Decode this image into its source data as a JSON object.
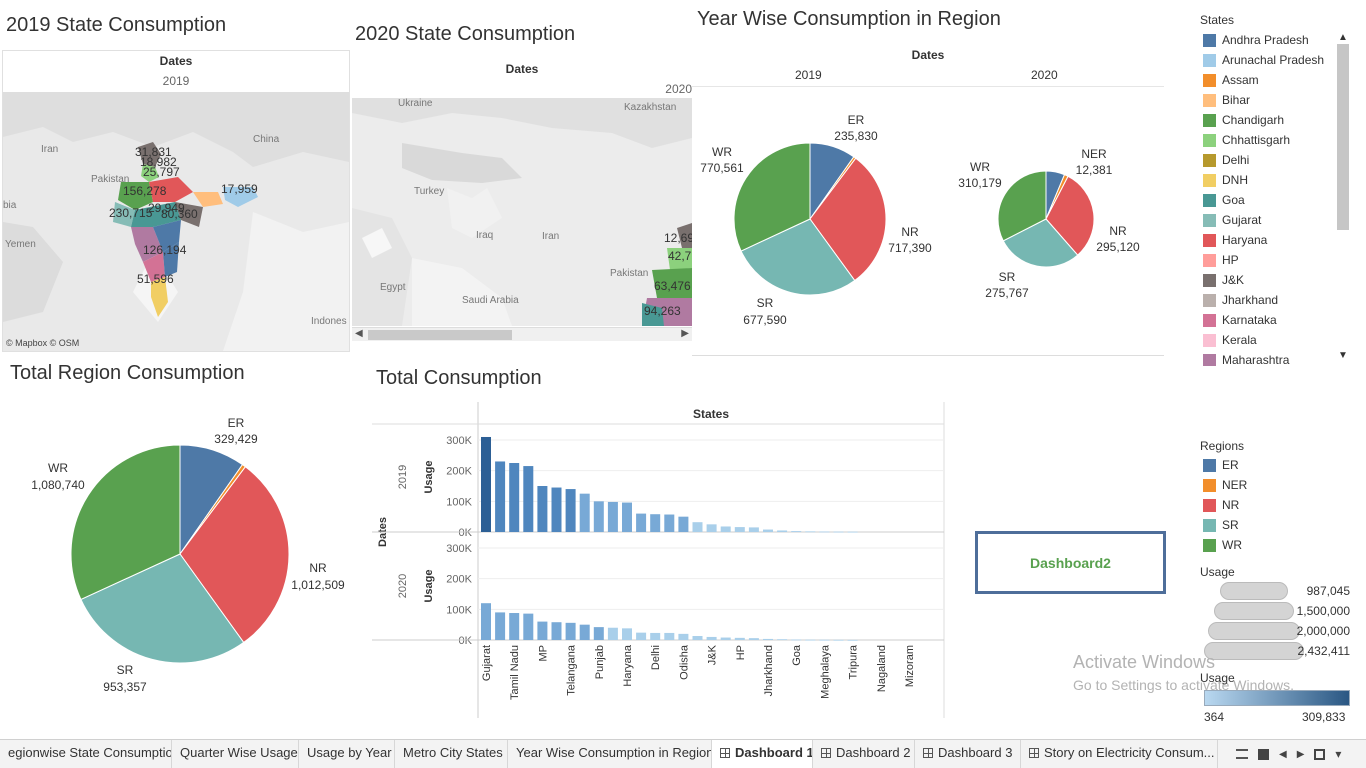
{
  "colors": {
    "ER": "#4e79a7",
    "NER": "#f28e2b",
    "NR": "#e15759",
    "SR": "#76b7b2",
    "WR": "#59a14f",
    "barDark": "#2c5f95",
    "barLight": "#a9cfea",
    "accentBox": "#4e6e9a",
    "dashboardText": "#59a14f"
  },
  "map2019": {
    "title": "2019 State Consumption",
    "header": "Dates",
    "year": "2019",
    "labels": [
      "31,831",
      "18,982",
      "25,797",
      "156,278",
      "17,959",
      "230,715",
      "29,949",
      "80,360",
      "126,194",
      "51,596"
    ],
    "places": [
      "Iran",
      "China",
      "Pakistan",
      "Yemen",
      "bia",
      "Indones"
    ],
    "credit": "© Mapbox © OSM"
  },
  "map2020": {
    "title": "2020 State Consumption",
    "header": "Dates",
    "year": "2020",
    "labels": [
      "12,69",
      "42,7",
      "63,476",
      "94,263"
    ],
    "places": [
      "Ukraine",
      "Kazakhstan",
      "Turkey",
      "Iraq",
      "Iran",
      "Egypt",
      "Saudi Arabia",
      "Pakistan"
    ]
  },
  "yearWise": {
    "title": "Year Wise Consumption in Region",
    "header": "Dates",
    "years": [
      "2019",
      "2020"
    ],
    "pie2019": {
      "slices": [
        {
          "region": "ER",
          "label": "ER",
          "value": "235,830",
          "v": 235830
        },
        {
          "region": "NER",
          "label": "NER",
          "value": "",
          "v": 12000
        },
        {
          "region": "NR",
          "label": "NR",
          "value": "717,390",
          "v": 717390
        },
        {
          "region": "SR",
          "label": "SR",
          "value": "677,590",
          "v": 677590
        },
        {
          "region": "WR",
          "label": "WR",
          "value": "770,561",
          "v": 770561
        }
      ]
    },
    "pie2020": {
      "slices": [
        {
          "region": "ER",
          "label": "",
          "value": "",
          "v": 60000
        },
        {
          "region": "NER",
          "label": "NER",
          "value": "12,381",
          "v": 12381
        },
        {
          "region": "NR",
          "label": "NR",
          "value": "295,120",
          "v": 295120
        },
        {
          "region": "SR",
          "label": "SR",
          "value": "275,767",
          "v": 275767
        },
        {
          "region": "WR",
          "label": "WR",
          "value": "310,179",
          "v": 310179
        }
      ]
    }
  },
  "statesLegend": {
    "title": "States",
    "items": [
      {
        "name": "Andhra Pradesh",
        "color": "#4e79a7"
      },
      {
        "name": "Arunachal Pradesh",
        "color": "#a0cbe8"
      },
      {
        "name": "Assam",
        "color": "#f28e2b"
      },
      {
        "name": "Bihar",
        "color": "#ffbe7d"
      },
      {
        "name": "Chandigarh",
        "color": "#59a14f"
      },
      {
        "name": "Chhattisgarh",
        "color": "#8cd17d"
      },
      {
        "name": "Delhi",
        "color": "#b6992d"
      },
      {
        "name": "DNH",
        "color": "#f1ce63"
      },
      {
        "name": "Goa",
        "color": "#499894"
      },
      {
        "name": "Gujarat",
        "color": "#86bcb6"
      },
      {
        "name": "Haryana",
        "color": "#e15759"
      },
      {
        "name": "HP",
        "color": "#ff9d9a"
      },
      {
        "name": "J&K",
        "color": "#79706e"
      },
      {
        "name": "Jharkhand",
        "color": "#bab0ac"
      },
      {
        "name": "Karnataka",
        "color": "#d37295"
      },
      {
        "name": "Kerala",
        "color": "#fabfd2"
      },
      {
        "name": "Maharashtra",
        "color": "#b07aa1"
      }
    ]
  },
  "totalRegion": {
    "title": "Total Region Consumption",
    "slices": [
      {
        "region": "ER",
        "label": "ER",
        "value": "329,429",
        "v": 329429
      },
      {
        "region": "NER",
        "label": "",
        "value": "",
        "v": 18000
      },
      {
        "region": "NR",
        "label": "NR",
        "value": "1,012,509",
        "v": 1012509
      },
      {
        "region": "SR",
        "label": "SR",
        "value": "953,357",
        "v": 953357
      },
      {
        "region": "WR",
        "label": "WR",
        "value": "1,080,740",
        "v": 1080740
      }
    ]
  },
  "totalConsumption": {
    "title": "Total Consumption",
    "colHeader": "States",
    "rowHeader": "Dates",
    "measure": "Usage",
    "ticks": [
      "300K",
      "200K",
      "100K",
      "0K"
    ],
    "xlabels": [
      "Gujarat",
      "Tamil Nadu",
      "MP",
      "Telangana",
      "Punjab",
      "Haryana",
      "Delhi",
      "Odisha",
      "J&K",
      "HP",
      "Jharkhand",
      "Goa",
      "Meghalaya",
      "Tripura",
      "Nagaland",
      "Mizoram"
    ],
    "rows": [
      {
        "year": "2019",
        "values": [
          309833,
          230000,
          225000,
          215000,
          150000,
          145000,
          140000,
          125000,
          100000,
          98000,
          96000,
          60000,
          58000,
          57000,
          50000,
          32000,
          25000,
          18000,
          16000,
          15000,
          8000,
          5000,
          3000,
          2000,
          1500,
          1200,
          1000
        ]
      },
      {
        "year": "2020",
        "values": [
          120000,
          90000,
          88000,
          86000,
          60000,
          58000,
          56000,
          50000,
          42000,
          40000,
          38000,
          24000,
          23000,
          23000,
          20000,
          13000,
          10000,
          8000,
          7000,
          6000,
          3500,
          2500,
          1500,
          1000,
          800,
          600,
          364
        ]
      }
    ]
  },
  "dashboardButton": "Dashboard2",
  "regionsLegend": {
    "title": "Regions",
    "items": [
      {
        "name": "ER",
        "color": "#4e79a7"
      },
      {
        "name": "NER",
        "color": "#f28e2b"
      },
      {
        "name": "NR",
        "color": "#e15759"
      },
      {
        "name": "SR",
        "color": "#76b7b2"
      },
      {
        "name": "WR",
        "color": "#59a14f"
      }
    ]
  },
  "usageSize": {
    "title": "Usage",
    "items": [
      "987,045",
      "1,500,000",
      "2,000,000",
      "2,432,411"
    ]
  },
  "usageColor": {
    "title": "Usage",
    "min": "364",
    "max": "309,833"
  },
  "watermark": {
    "line1": "Activate Windows",
    "line2": "Go to Settings to activate Windows."
  },
  "tabs": [
    {
      "label": "egionwise State Consumption",
      "icon": false,
      "active": false
    },
    {
      "label": "Quarter Wise Usage",
      "icon": false,
      "active": false
    },
    {
      "label": "Usage by Year",
      "icon": false,
      "active": false
    },
    {
      "label": "Metro City States",
      "icon": false,
      "active": false
    },
    {
      "label": "Year Wise Consumption in Region",
      "icon": false,
      "active": false
    },
    {
      "label": "Dashboard 1",
      "icon": true,
      "active": true
    },
    {
      "label": "Dashboard 2",
      "icon": true,
      "active": false
    },
    {
      "label": "Dashboard 3",
      "icon": true,
      "active": false
    },
    {
      "label": "Story on Electricity Consum...",
      "icon": true,
      "active": false
    }
  ]
}
